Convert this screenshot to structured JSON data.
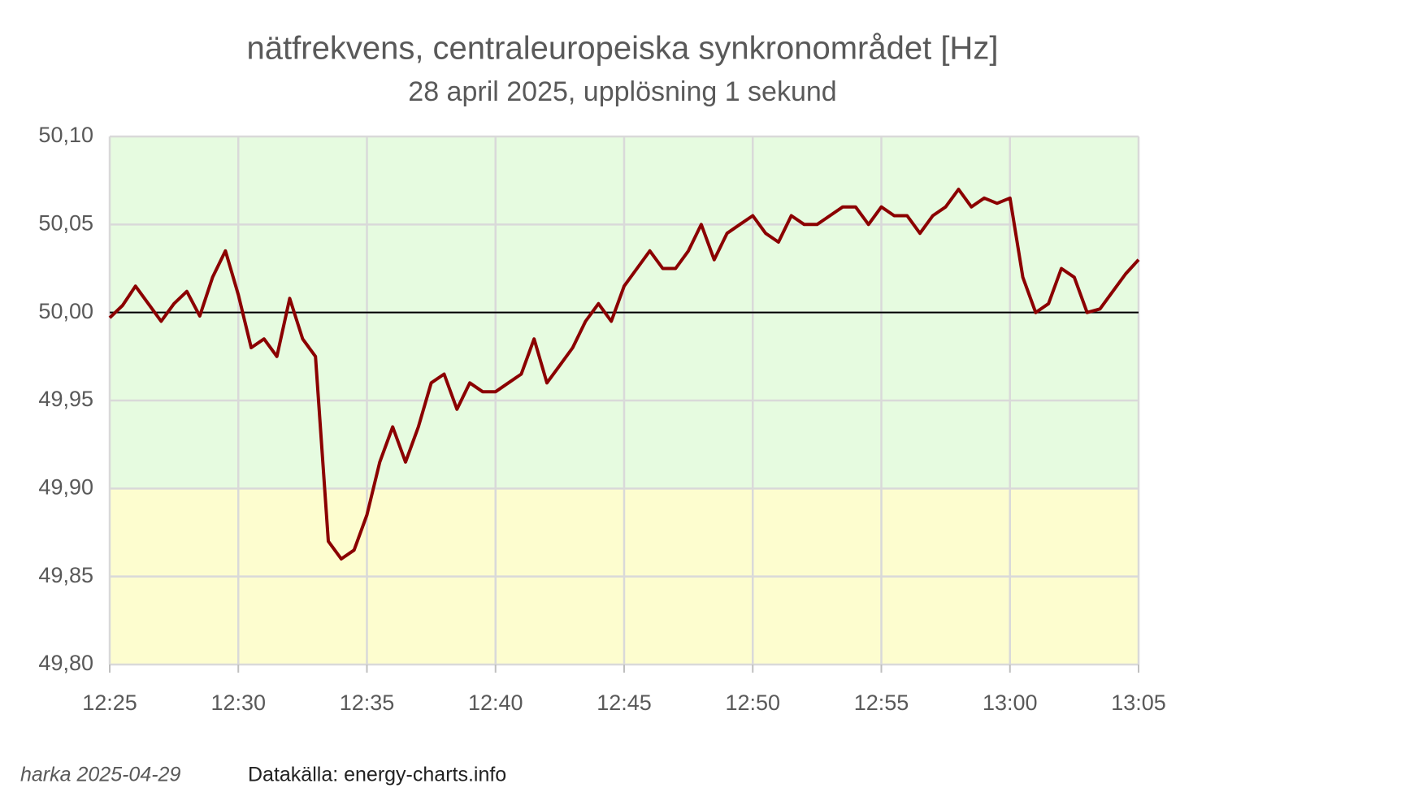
{
  "chart_data": {
    "type": "line",
    "title": "nätfrekvens, centraleuropeiska synkronområdet [Hz]",
    "subtitle": "28 april 2025, upplösning 1 sekund",
    "footer_left": "harka 2025-04-29",
    "footer_right": "Datakälla: energy-charts.info",
    "x": [
      "12:25:00",
      "12:25:30",
      "12:26:00",
      "12:26:30",
      "12:27:00",
      "12:27:30",
      "12:28:00",
      "12:28:30",
      "12:29:00",
      "12:29:30",
      "12:30:00",
      "12:30:30",
      "12:31:00",
      "12:31:30",
      "12:32:00",
      "12:32:30",
      "12:33:00",
      "12:33:30",
      "12:34:00",
      "12:34:30",
      "12:35:00",
      "12:35:30",
      "12:36:00",
      "12:36:30",
      "12:37:00",
      "12:37:30",
      "12:38:00",
      "12:38:30",
      "12:39:00",
      "12:39:30",
      "12:40:00",
      "12:40:30",
      "12:41:00",
      "12:41:30",
      "12:42:00",
      "12:42:30",
      "12:43:00",
      "12:43:30",
      "12:44:00",
      "12:44:30",
      "12:45:00",
      "12:45:30",
      "12:46:00",
      "12:46:30",
      "12:47:00",
      "12:47:30",
      "12:48:00",
      "12:48:30",
      "12:49:00",
      "12:49:30",
      "12:50:00",
      "12:50:30",
      "12:51:00",
      "12:51:30",
      "12:52:00",
      "12:52:30",
      "12:53:00",
      "12:53:30",
      "12:54:00",
      "12:54:30",
      "12:55:00",
      "12:55:30",
      "12:56:00",
      "12:56:30",
      "12:57:00",
      "12:57:30",
      "12:58:00",
      "12:58:30",
      "12:59:00",
      "12:59:30",
      "13:00:00",
      "13:00:30",
      "13:01:00",
      "13:01:30",
      "13:02:00",
      "13:02:30",
      "13:03:00",
      "13:03:30",
      "13:04:00",
      "13:04:30",
      "13:05:00"
    ],
    "series": [
      {
        "name": "nätfrekvens",
        "color": "#8b0000",
        "values": [
          49.997,
          50.004,
          50.015,
          50.005,
          49.995,
          50.005,
          50.012,
          49.998,
          50.02,
          50.035,
          50.01,
          49.98,
          49.985,
          49.975,
          50.008,
          49.985,
          49.975,
          49.87,
          49.86,
          49.865,
          49.885,
          49.915,
          49.935,
          49.915,
          49.935,
          49.96,
          49.965,
          49.945,
          49.96,
          49.955,
          49.955,
          49.96,
          49.965,
          49.985,
          49.96,
          49.97,
          49.98,
          49.995,
          50.005,
          49.995,
          50.015,
          50.025,
          50.035,
          50.025,
          50.025,
          50.035,
          50.05,
          50.03,
          50.045,
          50.05,
          50.055,
          50.045,
          50.04,
          50.055,
          50.05,
          50.05,
          50.055,
          50.06,
          50.06,
          50.05,
          50.06,
          50.055,
          50.055,
          50.045,
          50.055,
          50.06,
          50.07,
          50.06,
          50.065,
          50.062,
          50.065,
          50.02,
          50.0,
          50.005,
          50.025,
          50.02,
          50.0,
          50.002,
          50.012,
          50.022,
          50.03
        ]
      }
    ],
    "xlim": [
      "12:25",
      "13:05"
    ],
    "xticks": [
      "12:25",
      "12:30",
      "12:35",
      "12:40",
      "12:45",
      "12:50",
      "12:55",
      "13:00",
      "13:05"
    ],
    "ylim": [
      49.8,
      50.1
    ],
    "yticks": [
      {
        "value": 49.8,
        "label": "49,80"
      },
      {
        "value": 49.85,
        "label": "49,85"
      },
      {
        "value": 49.9,
        "label": "49,90"
      },
      {
        "value": 49.95,
        "label": "49,95"
      },
      {
        "value": 50.0,
        "label": "50,00"
      },
      {
        "value": 50.05,
        "label": "50,05"
      },
      {
        "value": 50.1,
        "label": "50,10"
      }
    ],
    "grid": true,
    "bands": [
      {
        "from": 49.9,
        "to": 50.1,
        "color": "#e6fbe0"
      },
      {
        "from": 49.8,
        "to": 49.9,
        "color": "#fdfdcf"
      }
    ],
    "reference_line": 50.0
  }
}
